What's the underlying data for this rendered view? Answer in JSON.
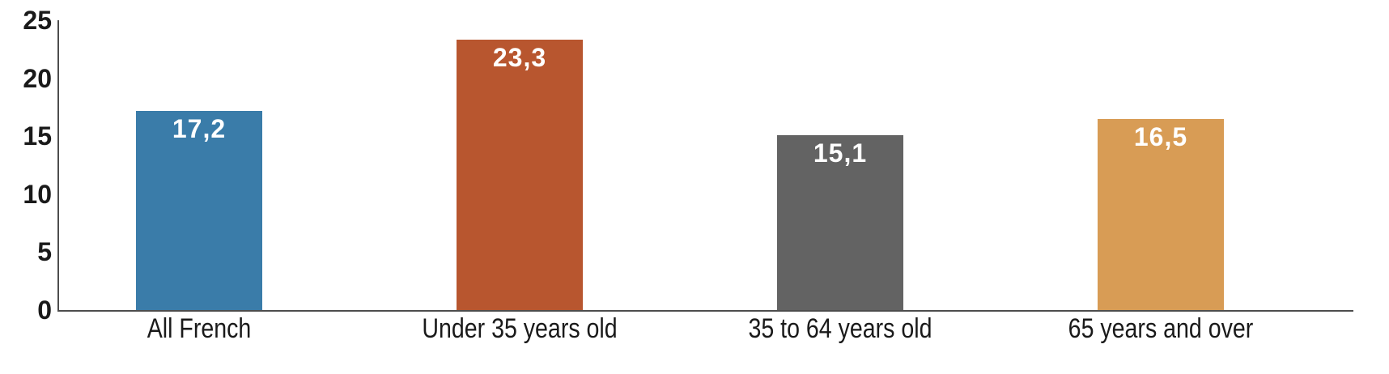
{
  "chart_data": {
    "type": "bar",
    "title": "",
    "xlabel": "",
    "ylabel": "",
    "categories": [
      "All French",
      "Under 35 years old",
      "35 to 64 years old",
      "65 years and over"
    ],
    "values": [
      17.2,
      23.3,
      15.1,
      16.5
    ],
    "value_labels": [
      "17,2",
      "23,3",
      "15,1",
      "16,5"
    ],
    "bar_colors": [
      "#3A7CA9",
      "#B8562F",
      "#636363",
      "#D89C55"
    ],
    "ylim": [
      0,
      25
    ],
    "yticks": [
      0,
      5,
      10,
      15,
      20,
      25
    ],
    "grid": "off",
    "legend": "none",
    "value_label_color": "#FFFFFF",
    "axis_color": "#4D4D4D",
    "tick_label_color": "#1A1A1A",
    "category_label_color": "#1A1A1A",
    "background_color": "#FFFFFF"
  }
}
